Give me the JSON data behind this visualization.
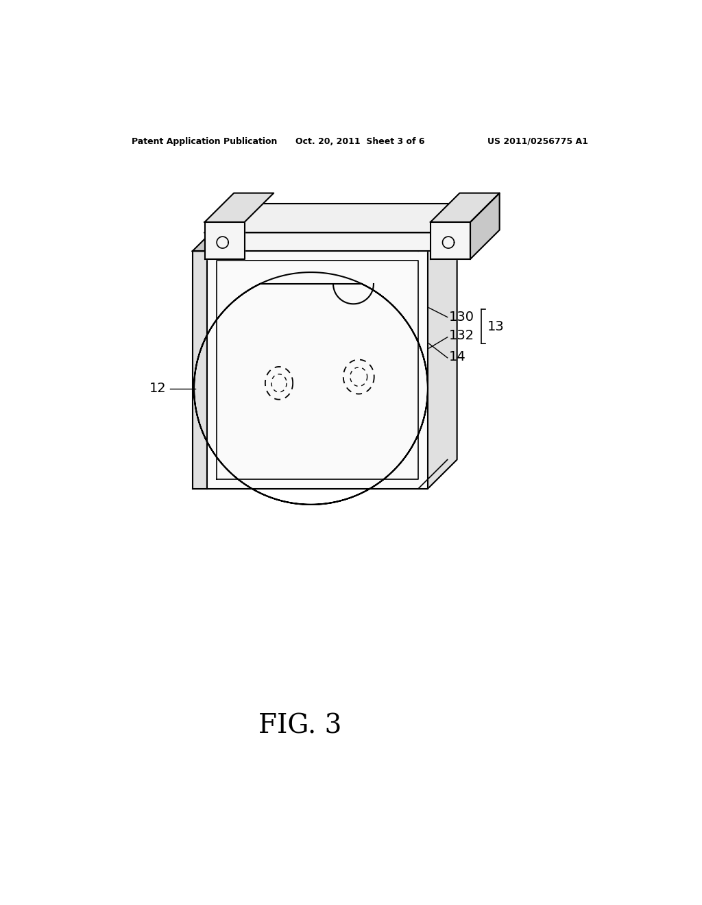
{
  "background_color": "#ffffff",
  "header_left": "Patent Application Publication",
  "header_center": "Oct. 20, 2011  Sheet 3 of 6",
  "header_right": "US 2011/0256775 A1",
  "figure_label": "FIG. 3",
  "line_color": "#000000",
  "fill_light": "#f0f0f0",
  "fill_mid": "#e0e0e0",
  "fill_dark": "#c8c8c8"
}
